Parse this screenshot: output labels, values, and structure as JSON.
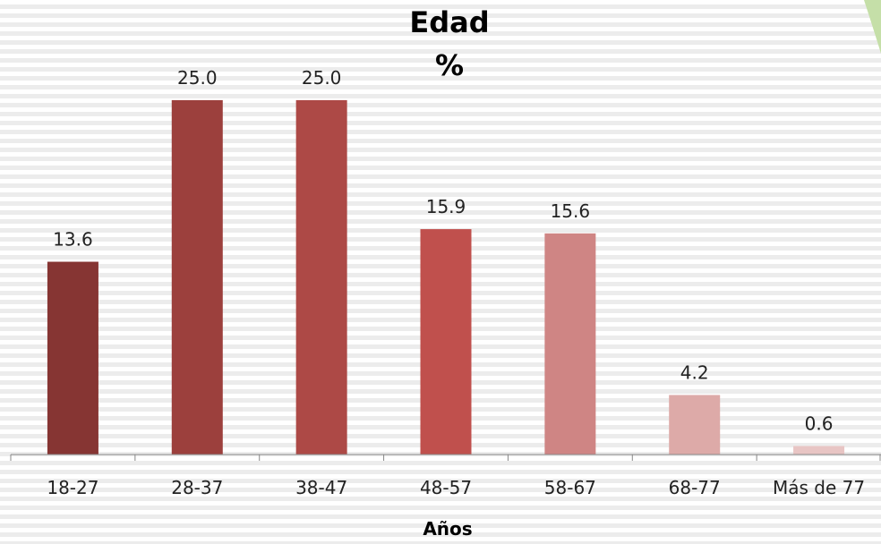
{
  "chart_data": {
    "type": "bar",
    "title": "Edad",
    "subtitle": "%",
    "xlabel": "Años",
    "ylabel": "",
    "categories": [
      "18-27",
      "28-37",
      "38-47",
      "48-57",
      "58-67",
      "68-77",
      "Más de 77"
    ],
    "values": [
      13.6,
      25.0,
      25.0,
      15.9,
      15.6,
      4.2,
      0.6
    ],
    "value_labels": [
      "13.6",
      "25.0",
      "25.0",
      "15.9",
      "15.6",
      "4.2",
      "0.6"
    ],
    "bar_colors": [
      "#863533",
      "#9c403d",
      "#ad4946",
      "#c0504d",
      "#cf8584",
      "#ddaaa8",
      "#e8c5c4"
    ],
    "ylim": [
      0,
      25.5
    ],
    "grid": false,
    "legend": "none"
  },
  "decoration": {
    "corner_shape_color": "#c5dfa8",
    "axis_color": "#888888"
  }
}
